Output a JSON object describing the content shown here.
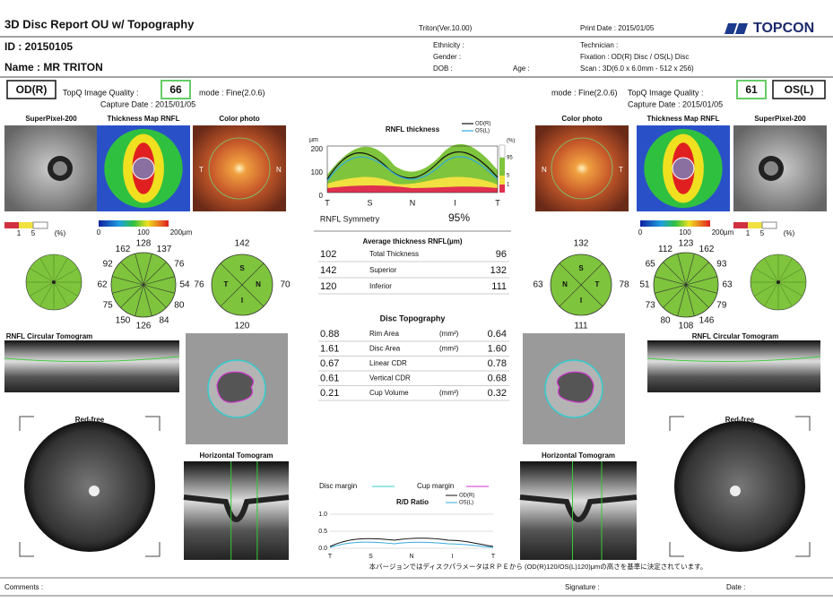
{
  "header": {
    "title": "3D Disc Report OU w/ Topography",
    "version": "Triton(Ver.10.00)",
    "print_date": "Print Date : 2015/01/05",
    "brand": "TOPCON"
  },
  "patient": {
    "id": "ID : 20150105",
    "name": "Name : MR   TRITON",
    "ethnicity": "Ethnicity :",
    "gender": "Gender :",
    "dob": "DOB :",
    "age": "Age :",
    "technician": "Technician :",
    "fixation": "Fixation : OD(R) Disc / OS(L) Disc",
    "scan": "Scan : 3D(6.0 x 6.0mm - 512 x 256)"
  },
  "od": {
    "eye": "OD(R)",
    "quality_label": "TopQ Image Quality :",
    "quality": "66",
    "mode": "mode : Fine(2.0.6)",
    "capture": "Capture Date : 2015/01/05",
    "panels": [
      "SuperPixel-200",
      "Thickness Map RNFL",
      "Color photo"
    ],
    "pct_scale": [
      "1",
      "5",
      "(%)"
    ],
    "um_scale": [
      "0",
      "100",
      "200µm"
    ],
    "photo_sides": [
      "T",
      "N"
    ],
    "clock": [
      "162",
      "128",
      "137",
      "76",
      "54",
      "80",
      "84",
      "126",
      "150",
      "75",
      "62",
      "92"
    ],
    "quadrant_letters": [
      "S",
      "N",
      "I",
      "T"
    ],
    "quadrants": [
      "142",
      "70",
      "120",
      "76"
    ],
    "circular": "RNFL Circular Tomogram",
    "redfree": "Red-free",
    "horizontal": "Horizontal Tomogram"
  },
  "os": {
    "eye": "OS(L)",
    "quality_label": "TopQ Image Quality :",
    "quality": "61",
    "mode": "mode : Fine(2.0.6)",
    "capture": "Capture Date : 2015/01/05",
    "panels": [
      "Color photo",
      "Thickness Map RNFL",
      "SuperPixel-200"
    ],
    "pct_scale": [
      "1",
      "5",
      "(%)"
    ],
    "um_scale": [
      "0",
      "100",
      "200µm"
    ],
    "photo_sides": [
      "N",
      "T"
    ],
    "clock": [
      "112",
      "123",
      "162",
      "93",
      "63",
      "79",
      "146",
      "108",
      "80",
      "73",
      "51",
      "65"
    ],
    "quadrant_letters": [
      "S",
      "T",
      "I",
      "N"
    ],
    "quadrants": [
      "132",
      "78",
      "111",
      "63"
    ],
    "circular": "RNFL Circular Tomogram",
    "redfree": "Red-free",
    "horizontal": "Horizontal Tomogram"
  },
  "rnfl_chart": {
    "title": "RNFL thickness",
    "legend": [
      "OD(R)",
      "OS(L)"
    ],
    "unit": "µm",
    "yticks": [
      "200",
      "100",
      "0"
    ],
    "xlabels": [
      "T",
      "S",
      "N",
      "I",
      "T"
    ],
    "pct_labels": [
      "(%)",
      "95",
      "5",
      "1"
    ]
  },
  "symmetry": {
    "label": "RNFL Symmetry",
    "value": "95%"
  },
  "average": {
    "title": "Average thickness RNFL(µm)",
    "rows": [
      {
        "od": "102",
        "name": "Total Thickness",
        "os": "96"
      },
      {
        "od": "142",
        "name": "Superior",
        "os": "132"
      },
      {
        "od": "120",
        "name": "Inferior",
        "os": "111"
      }
    ]
  },
  "topography": {
    "title": "Disc Topography",
    "rows": [
      {
        "od": "0.88",
        "name": "Rim Area",
        "unit": "(mm²)",
        "os": "0.64"
      },
      {
        "od": "1.61",
        "name": "Disc Area",
        "unit": "(mm²)",
        "os": "1.60"
      },
      {
        "od": "0.67",
        "name": "Linear CDR",
        "os": "0.78"
      },
      {
        "od": "0.61",
        "name": "Vertical CDR",
        "os": "0.68"
      },
      {
        "od": "0.21",
        "name": "Cup Volume",
        "unit": "(mm³)",
        "os": "0.32"
      }
    ]
  },
  "margins": {
    "disc": "Disc margin",
    "cup": "Cup margin"
  },
  "rd_chart": {
    "title": "R/D Ratio",
    "legend": [
      "OD(R)",
      "OS(L)"
    ],
    "yticks": [
      "1.0",
      "0.5",
      "0.0"
    ],
    "xlabels": [
      "T",
      "S",
      "N",
      "I",
      "T"
    ]
  },
  "note": "本バージョンではディスクパラメータはＲＰＥから (OD(R)120/OS(L)120)μmの高さを基準に決定されています。",
  "footer": {
    "comments": "Comments :",
    "signature": "Signature :",
    "date": "Date :"
  }
}
